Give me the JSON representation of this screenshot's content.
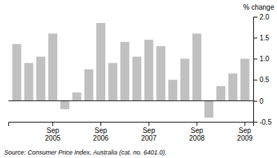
{
  "chart_data": {
    "type": "bar",
    "categories": [
      null,
      null,
      null,
      "Sep\n2005",
      null,
      null,
      null,
      "Sep\n2006",
      null,
      null,
      null,
      "Sep\n2007",
      null,
      null,
      null,
      "Sep\n2008",
      null,
      null,
      null,
      "Sep\n2009"
    ],
    "values": [
      1.35,
      0.9,
      1.05,
      1.6,
      -0.2,
      0.2,
      0.75,
      1.85,
      0.9,
      1.4,
      1.05,
      1.45,
      1.3,
      0.5,
      1.0,
      1.6,
      -0.4,
      0.35,
      0.65,
      1.0
    ],
    "color": "#c0c0c0",
    "ylim": [
      -0.5,
      2.0
    ],
    "yticks": [
      -0.5,
      0,
      0.5,
      {
        "value": 1.0,
        "label": "1.0"
      },
      1.5,
      {
        "value": 2.0,
        "label": "2.0"
      }
    ],
    "ylabel": "% change",
    "source": "Source: Consumer Price Index, Australia (cat. no. 6401.0).",
    "grid": false
  }
}
